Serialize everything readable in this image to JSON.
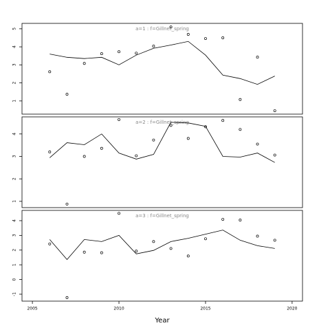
{
  "chart_data": [
    {
      "type": "line",
      "title": "a=1 : f=Gillnet_spring",
      "x": [
        2006,
        2007,
        2008,
        2009,
        2010,
        2011,
        2012,
        2013,
        2014,
        2015,
        2016,
        2017,
        2018,
        2019
      ],
      "xlim": [
        2004.4,
        2020.6
      ],
      "ylim": [
        0.27,
        5.3
      ],
      "yticks": [
        1,
        2,
        3,
        4,
        5
      ],
      "series": [
        {
          "style": "points",
          "color": "#000000",
          "values": [
            2.62,
            1.37,
            3.08,
            3.62,
            3.73,
            3.65,
            4.04,
            5.1,
            4.69,
            4.46,
            4.5,
            1.08,
            3.43,
            0.46
          ]
        },
        {
          "style": "line",
          "color": "#000000",
          "values": [
            3.6,
            3.42,
            3.35,
            3.42,
            3.0,
            3.54,
            3.92,
            4.1,
            4.3,
            3.54,
            2.43,
            2.24,
            1.92,
            2.38
          ]
        }
      ]
    },
    {
      "type": "line",
      "title": "a=2 : f=Gillnet_spring",
      "x": [
        2006,
        2007,
        2008,
        2009,
        2010,
        2011,
        2012,
        2013,
        2014,
        2015,
        2016,
        2017,
        2018,
        2019
      ],
      "xlim": [
        2004.4,
        2020.6
      ],
      "ylim": [
        0.72,
        4.76
      ],
      "yticks": [
        1,
        2,
        3,
        4
      ],
      "series": [
        {
          "style": "points",
          "color": "#000000",
          "values": [
            3.2,
            0.88,
            3.0,
            3.36,
            4.64,
            3.03,
            3.73,
            4.38,
            3.8,
            4.32,
            4.6,
            4.2,
            3.55,
            3.06
          ]
        },
        {
          "style": "line",
          "color": "#000000",
          "values": [
            2.94,
            3.61,
            3.52,
            4.0,
            3.15,
            2.88,
            3.09,
            4.52,
            4.49,
            4.34,
            3.0,
            2.97,
            3.15,
            2.73
          ]
        }
      ]
    },
    {
      "type": "line",
      "title": "a=3 : f=Gillnet_spring",
      "x": [
        2006,
        2007,
        2008,
        2009,
        2010,
        2011,
        2012,
        2013,
        2014,
        2015,
        2016,
        2017,
        2018,
        2019
      ],
      "xlim": [
        2004.4,
        2020.6
      ],
      "xticks": [
        2005,
        2010,
        2015,
        2020
      ],
      "xlabel": "Year",
      "ylim": [
        -1.47,
        4.7
      ],
      "yticks": [
        -1,
        0,
        1,
        2,
        3,
        4
      ],
      "series": [
        {
          "style": "points",
          "color": "#000000",
          "values": [
            2.42,
            -1.23,
            1.86,
            1.82,
            4.5,
            1.93,
            2.58,
            2.11,
            1.6,
            2.77,
            4.09,
            4.04,
            2.95,
            2.67
          ]
        },
        {
          "style": "line",
          "color": "#000000",
          "values": [
            2.72,
            1.36,
            2.72,
            2.58,
            3.0,
            1.74,
            1.98,
            2.58,
            2.8,
            3.08,
            3.36,
            2.67,
            2.3,
            2.11
          ]
        }
      ]
    }
  ]
}
